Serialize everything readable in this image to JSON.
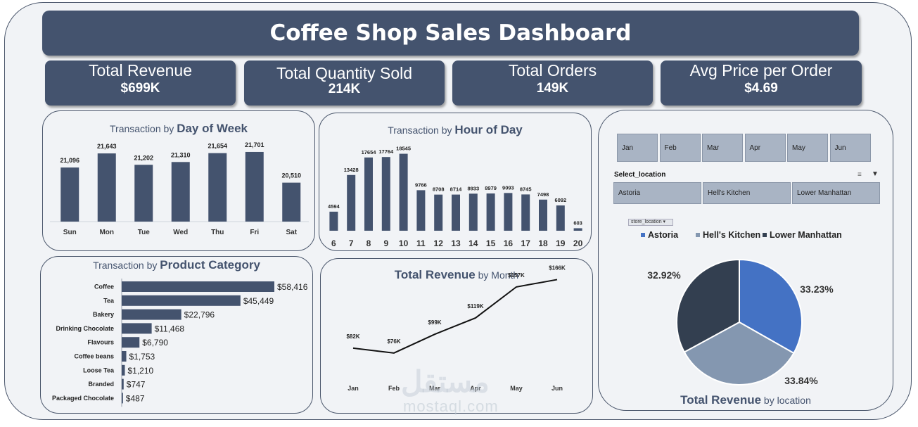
{
  "title": "Coffee Shop Sales Dashboard",
  "kpis": [
    {
      "label": "Total Revenue",
      "value": "$699K"
    },
    {
      "label": "Total Quantity Sold",
      "value": "214K"
    },
    {
      "label": "Total Orders",
      "value": "149K"
    },
    {
      "label": "Avg Price per Order",
      "value": "$4.69"
    }
  ],
  "dow": {
    "title_pre": "Transaction by ",
    "title_bold": "Day of Week"
  },
  "hour": {
    "title_pre": "Transaction by ",
    "title_bold": "Hour of Day"
  },
  "cat": {
    "title_pre": "Transaction by ",
    "title_bold": "Product Category"
  },
  "month": {
    "title_bold": "Total Revenue",
    "title_post": " by Month"
  },
  "loc": {
    "title_bold": "Total Revenue",
    "title_post": " by location",
    "field_button": "store_location"
  },
  "slicers": {
    "months": [
      "Jan",
      "Feb",
      "Mar",
      "Apr",
      "May",
      "Jun"
    ],
    "location_header": "Select_location",
    "locations": [
      "Astoria",
      "Hell's Kitchen",
      "Lower Manhattan"
    ]
  },
  "watermark": {
    "arabic": "مستقل",
    "latin": "mostaql.com"
  },
  "colors": {
    "primary": "#44536e",
    "astoria": "#4472c4",
    "hells_kitchen": "#8497b0",
    "lower_manhattan": "#333f50"
  },
  "chart_data": [
    {
      "type": "bar",
      "categories": [
        "Sun",
        "Mon",
        "Tue",
        "Wed",
        "Thu",
        "Fri",
        "Sat"
      ],
      "values": [
        21096,
        21643,
        21202,
        21310,
        21654,
        21701,
        20510
      ],
      "labels": [
        "21,096",
        "21,643",
        "21,202",
        "21,310",
        "21,654",
        "21,701",
        "20,510"
      ],
      "title": "Transaction by Day of Week"
    },
    {
      "type": "bar",
      "categories": [
        "6",
        "7",
        "8",
        "9",
        "10",
        "11",
        "12",
        "13",
        "14",
        "15",
        "16",
        "17",
        "18",
        "19",
        "20"
      ],
      "values": [
        4594,
        13428,
        17654,
        17764,
        18545,
        9766,
        8708,
        8714,
        8933,
        8979,
        9093,
        8745,
        7498,
        6092,
        603
      ],
      "labels": [
        "4594",
        "13428",
        "17654",
        "17764",
        "18545",
        "9766",
        "8708",
        "8714",
        "8933",
        "8979",
        "9093",
        "8745",
        "7498",
        "6092",
        "603"
      ],
      "title": "Transaction by Hour of Day"
    },
    {
      "type": "bar",
      "orientation": "horizontal",
      "categories": [
        "Coffee",
        "Tea",
        "Bakery",
        "Drinking Chocolate",
        "Flavours",
        "Coffee beans",
        "Loose Tea",
        "Branded",
        "Packaged Chocolate"
      ],
      "values": [
        58416,
        45449,
        22796,
        11468,
        6790,
        1753,
        1210,
        747,
        487
      ],
      "labels": [
        "$58,416",
        "$45,449",
        "$22,796",
        "$11,468",
        "$6,790",
        "$1,753",
        "$1,210",
        "$747",
        "$487"
      ],
      "title": "Transaction by Product Category"
    },
    {
      "type": "line",
      "categories": [
        "Jan",
        "Feb",
        "Mar",
        "Apr",
        "May",
        "Jun"
      ],
      "values": [
        82,
        76,
        99,
        119,
        157,
        166
      ],
      "labels": [
        "$82K",
        "$76K",
        "$99K",
        "$119K",
        "$157K",
        "$166K"
      ],
      "title": "Total Revenue by Month"
    },
    {
      "type": "pie",
      "categories": [
        "Astoria",
        "Hell's Kitchen",
        "Lower Manhattan"
      ],
      "values": [
        33.23,
        33.84,
        32.92
      ],
      "labels": [
        "33.23%",
        "33.84%",
        "32.92%"
      ],
      "title": "Total Revenue by location",
      "legend": "top"
    }
  ]
}
